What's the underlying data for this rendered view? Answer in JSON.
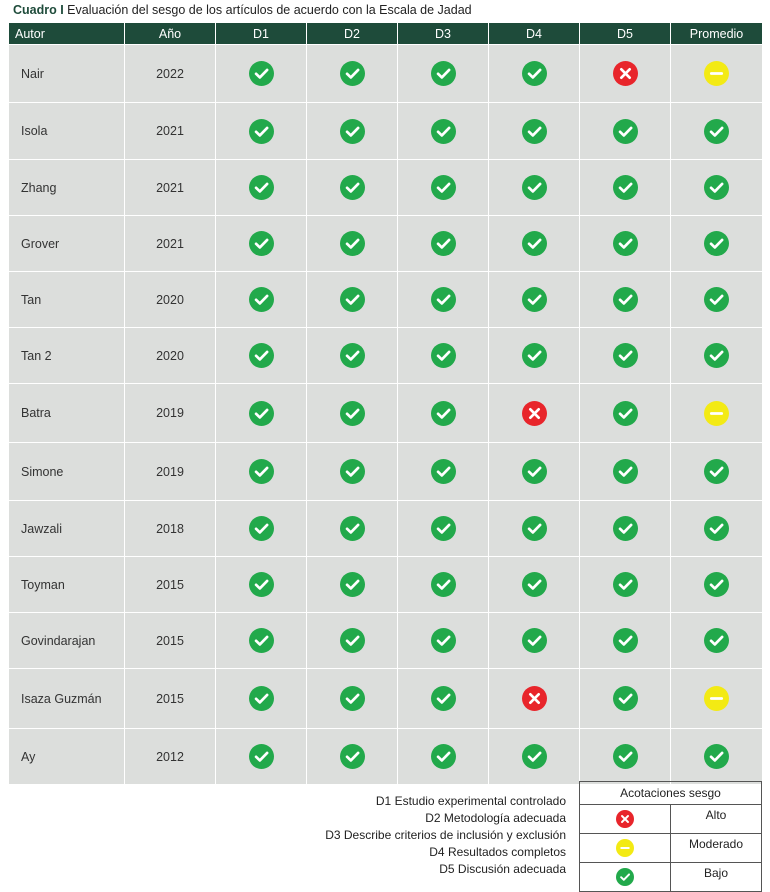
{
  "caption": {
    "label": "Cuadro I",
    "text": " Evaluación del sesgo de los artículos de acuerdo con la Escala de Jadad"
  },
  "colors": {
    "header_bg": "#1e4b3a",
    "cell_bg": "#dcdedc",
    "bajo": "#22a94b",
    "alto": "#e8252b",
    "moderado": "#f3ea14"
  },
  "table": {
    "headers": [
      "Autor",
      "Año",
      "D1",
      "D2",
      "D3",
      "D4",
      "D5",
      "Promedio"
    ],
    "rows": [
      {
        "autor": "Nair",
        "anio": "2022",
        "ratings": [
          "bajo",
          "bajo",
          "bajo",
          "bajo",
          "alto",
          "moderado"
        ]
      },
      {
        "autor": "Isola",
        "anio": "2021",
        "ratings": [
          "bajo",
          "bajo",
          "bajo",
          "bajo",
          "bajo",
          "bajo"
        ]
      },
      {
        "autor": "Zhang",
        "anio": "2021",
        "ratings": [
          "bajo",
          "bajo",
          "bajo",
          "bajo",
          "bajo",
          "bajo"
        ]
      },
      {
        "autor": "Grover",
        "anio": "2021",
        "ratings": [
          "bajo",
          "bajo",
          "bajo",
          "bajo",
          "bajo",
          "bajo"
        ]
      },
      {
        "autor": "Tan",
        "anio": "2020",
        "ratings": [
          "bajo",
          "bajo",
          "bajo",
          "bajo",
          "bajo",
          "bajo"
        ]
      },
      {
        "autor": "Tan 2",
        "anio": "2020",
        "ratings": [
          "bajo",
          "bajo",
          "bajo",
          "bajo",
          "bajo",
          "bajo"
        ]
      },
      {
        "autor": "Batra",
        "anio": "2019",
        "ratings": [
          "bajo",
          "bajo",
          "bajo",
          "alto",
          "bajo",
          "moderado"
        ]
      },
      {
        "autor": "Simone",
        "anio": "2019",
        "ratings": [
          "bajo",
          "bajo",
          "bajo",
          "bajo",
          "bajo",
          "bajo"
        ]
      },
      {
        "autor": "Jawzali",
        "anio": "2018",
        "ratings": [
          "bajo",
          "bajo",
          "bajo",
          "bajo",
          "bajo",
          "bajo"
        ]
      },
      {
        "autor": "Toyman",
        "anio": "2015",
        "ratings": [
          "bajo",
          "bajo",
          "bajo",
          "bajo",
          "bajo",
          "bajo"
        ]
      },
      {
        "autor": "Govindarajan",
        "anio": "2015",
        "ratings": [
          "bajo",
          "bajo",
          "bajo",
          "bajo",
          "bajo",
          "bajo"
        ]
      },
      {
        "autor": "Isaza Guzmán",
        "anio": "2015",
        "ratings": [
          "bajo",
          "bajo",
          "bajo",
          "alto",
          "bajo",
          "moderado"
        ]
      },
      {
        "autor": "Ay",
        "anio": "2012",
        "ratings": [
          "bajo",
          "bajo",
          "bajo",
          "bajo",
          "bajo",
          "bajo"
        ]
      }
    ]
  },
  "definitions": [
    "D1 Estudio experimental controlado",
    "D2 Metodología adecuada",
    "D3 Describe criterios de inclusión y exclusión",
    "D4 Resultados completos",
    "D5 Discusión adecuada"
  ],
  "legend": {
    "title": "Acotaciones sesgo",
    "items": [
      {
        "icon": "alto",
        "label": "Alto"
      },
      {
        "icon": "moderado",
        "label": "Moderado"
      },
      {
        "icon": "bajo",
        "label": "Bajo"
      }
    ]
  }
}
